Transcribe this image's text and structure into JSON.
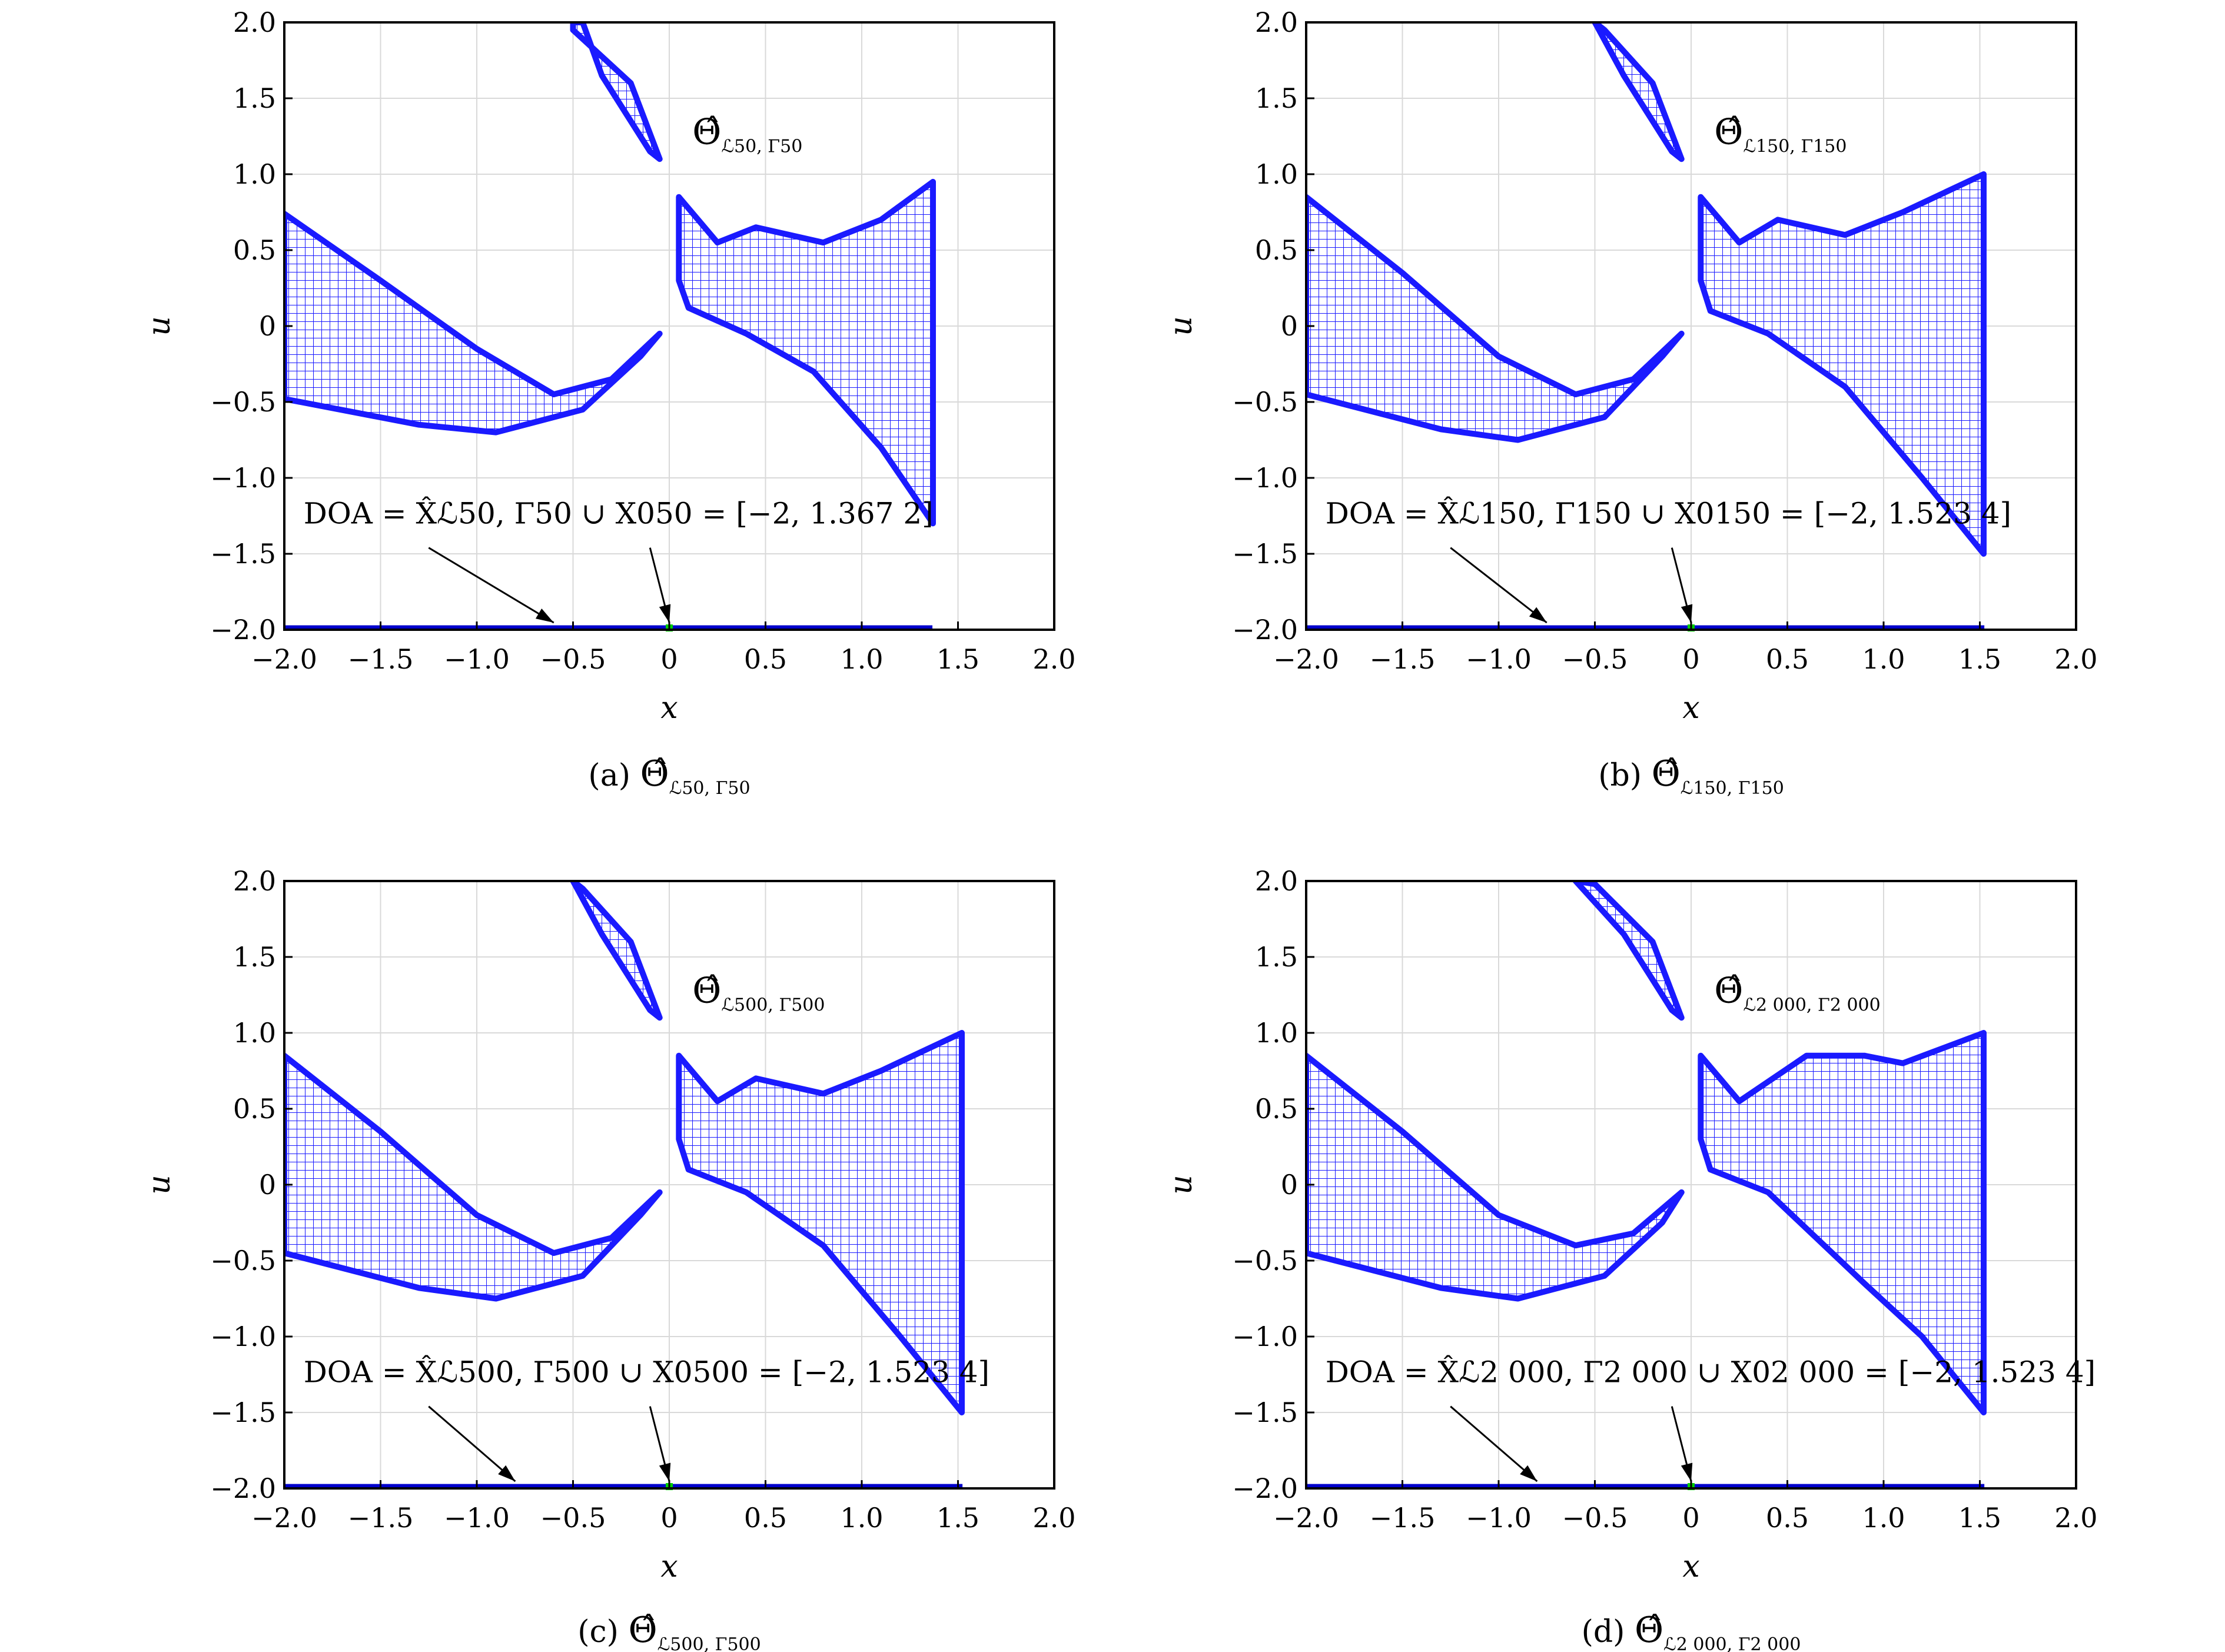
{
  "chart_data": [
    {
      "type": "area",
      "panel": "a",
      "caption_prefix": "(a)",
      "caption_symbol": "Θ̂",
      "caption_sub": "ℒ50, Γ50",
      "title_symbol": "Θ̂",
      "title_sub": "ℒ50, Γ50",
      "xlabel": "x",
      "ylabel": "u",
      "xlim": [
        -2.0,
        2.0
      ],
      "ylim": [
        -2.0,
        2.0
      ],
      "xticks": [
        "−2.0",
        "−1.5",
        "−1.0",
        "−0.5",
        "0",
        "0.5",
        "1.0",
        "1.5",
        "2.0"
      ],
      "yticks": [
        "−2.0",
        "−1.5",
        "−1.0",
        "−0.5",
        "0",
        "0.5",
        "1.0",
        "1.5",
        "2.0"
      ],
      "grid": true,
      "doa_text": "DOA = X̂ℒ50, Γ50 ∪ X050 = [−2, 1.367 2]",
      "doa_interval": [
        -2.0,
        1.3672
      ],
      "arrow_targets_x": [
        -0.6,
        0.0
      ],
      "region_color": "#1a1aff",
      "upper_lobe": {
        "x": [
          [
            -0.5,
            2.0
          ],
          [
            -0.5,
            1.95
          ],
          [
            -0.2,
            1.6
          ],
          [
            -0.05,
            1.1
          ],
          [
            -0.1,
            1.15
          ],
          [
            -0.35,
            1.65
          ],
          [
            -0.45,
            2.0
          ]
        ]
      },
      "left_lobe": {
        "x": [
          [
            -2.0,
            0.74
          ],
          [
            -1.5,
            0.3
          ],
          [
            -1.0,
            -0.15
          ],
          [
            -0.6,
            -0.45
          ],
          [
            -0.3,
            -0.35
          ],
          [
            -0.05,
            -0.05
          ],
          [
            -0.15,
            -0.2
          ],
          [
            -0.45,
            -0.55
          ],
          [
            -0.9,
            -0.7
          ],
          [
            -1.3,
            -0.65
          ],
          [
            -2.0,
            -0.48
          ]
        ]
      },
      "right_lobe": {
        "x": [
          [
            0.05,
            0.85
          ],
          [
            0.25,
            0.55
          ],
          [
            0.45,
            0.65
          ],
          [
            0.8,
            0.55
          ],
          [
            1.1,
            0.7
          ],
          [
            1.37,
            0.95
          ],
          [
            1.37,
            -1.3
          ],
          [
            1.1,
            -0.8
          ],
          [
            0.75,
            -0.3
          ],
          [
            0.4,
            -0.05
          ],
          [
            0.1,
            0.12
          ],
          [
            0.05,
            0.3
          ]
        ]
      }
    },
    {
      "type": "area",
      "panel": "b",
      "caption_prefix": "(b)",
      "caption_symbol": "Θ̂",
      "caption_sub": "ℒ150, Γ150",
      "title_symbol": "Θ̂",
      "title_sub": "ℒ150, Γ150",
      "xlabel": "x",
      "ylabel": "u",
      "xlim": [
        -2.0,
        2.0
      ],
      "ylim": [
        -2.0,
        2.0
      ],
      "xticks": [
        "−2.0",
        "−1.5",
        "−1.0",
        "−0.5",
        "0",
        "0.5",
        "1.0",
        "1.5",
        "2.0"
      ],
      "yticks": [
        "−2.0",
        "−1.5",
        "−1.0",
        "−0.5",
        "0",
        "0.5",
        "1.0",
        "1.5",
        "2.0"
      ],
      "grid": true,
      "doa_text": "DOA = X̂ℒ150, Γ150 ∪ X0150 = [−2, 1.523 4]",
      "doa_interval": [
        -2.0,
        1.5234
      ],
      "arrow_targets_x": [
        -0.75,
        0.0
      ],
      "region_color": "#1a1aff",
      "upper_lobe": {
        "x": [
          [
            -0.5,
            2.0
          ],
          [
            -0.45,
            1.95
          ],
          [
            -0.2,
            1.6
          ],
          [
            -0.05,
            1.1
          ],
          [
            -0.1,
            1.15
          ],
          [
            -0.35,
            1.65
          ],
          [
            -0.5,
            2.0
          ]
        ]
      },
      "left_lobe": {
        "x": [
          [
            -2.0,
            0.85
          ],
          [
            -1.5,
            0.35
          ],
          [
            -1.0,
            -0.2
          ],
          [
            -0.6,
            -0.45
          ],
          [
            -0.3,
            -0.35
          ],
          [
            -0.05,
            -0.05
          ],
          [
            -0.15,
            -0.2
          ],
          [
            -0.45,
            -0.6
          ],
          [
            -0.9,
            -0.75
          ],
          [
            -1.3,
            -0.68
          ],
          [
            -2.0,
            -0.45
          ]
        ]
      },
      "right_lobe": {
        "x": [
          [
            0.05,
            0.85
          ],
          [
            0.25,
            0.55
          ],
          [
            0.45,
            0.7
          ],
          [
            0.8,
            0.6
          ],
          [
            1.1,
            0.75
          ],
          [
            1.52,
            1.0
          ],
          [
            1.52,
            -1.5
          ],
          [
            1.2,
            -1.0
          ],
          [
            0.8,
            -0.4
          ],
          [
            0.4,
            -0.05
          ],
          [
            0.1,
            0.1
          ],
          [
            0.05,
            0.3
          ]
        ]
      }
    },
    {
      "type": "area",
      "panel": "c",
      "caption_prefix": "(c)",
      "caption_symbol": "Θ̂",
      "caption_sub": "ℒ500, Γ500",
      "title_symbol": "Θ̂",
      "title_sub": "ℒ500, Γ500",
      "xlabel": "x",
      "ylabel": "u",
      "xlim": [
        -2.0,
        2.0
      ],
      "ylim": [
        -2.0,
        2.0
      ],
      "xticks": [
        "−2.0",
        "−1.5",
        "−1.0",
        "−0.5",
        "0",
        "0.5",
        "1.0",
        "1.5",
        "2.0"
      ],
      "yticks": [
        "−2.0",
        "−1.5",
        "−1.0",
        "−0.5",
        "0",
        "0.5",
        "1.0",
        "1.5",
        "2.0"
      ],
      "grid": true,
      "doa_text": "DOA = X̂ℒ500, Γ500 ∪ X0500 = [−2, 1.523 4]",
      "doa_interval": [
        -2.0,
        1.5234
      ],
      "arrow_targets_x": [
        -0.8,
        0.0
      ],
      "region_color": "#1a1aff",
      "upper_lobe": {
        "x": [
          [
            -0.5,
            2.0
          ],
          [
            -0.45,
            1.95
          ],
          [
            -0.2,
            1.6
          ],
          [
            -0.05,
            1.1
          ],
          [
            -0.1,
            1.15
          ],
          [
            -0.35,
            1.65
          ],
          [
            -0.5,
            2.0
          ]
        ]
      },
      "left_lobe": {
        "x": [
          [
            -2.0,
            0.85
          ],
          [
            -1.5,
            0.35
          ],
          [
            -1.0,
            -0.2
          ],
          [
            -0.6,
            -0.45
          ],
          [
            -0.3,
            -0.35
          ],
          [
            -0.05,
            -0.05
          ],
          [
            -0.15,
            -0.2
          ],
          [
            -0.45,
            -0.6
          ],
          [
            -0.9,
            -0.75
          ],
          [
            -1.3,
            -0.68
          ],
          [
            -2.0,
            -0.45
          ]
        ]
      },
      "right_lobe": {
        "x": [
          [
            0.05,
            0.85
          ],
          [
            0.25,
            0.55
          ],
          [
            0.45,
            0.7
          ],
          [
            0.8,
            0.6
          ],
          [
            1.1,
            0.75
          ],
          [
            1.52,
            1.0
          ],
          [
            1.52,
            -1.5
          ],
          [
            1.2,
            -1.0
          ],
          [
            0.8,
            -0.4
          ],
          [
            0.4,
            -0.05
          ],
          [
            0.1,
            0.1
          ],
          [
            0.05,
            0.3
          ]
        ]
      }
    },
    {
      "type": "area",
      "panel": "d",
      "caption_prefix": "(d)",
      "caption_symbol": "Θ̂",
      "caption_sub": "ℒ2 000, Γ2 000",
      "title_symbol": "Θ̂",
      "title_sub": "ℒ2 000, Γ2 000",
      "xlabel": "x",
      "ylabel": "u",
      "xlim": [
        -2.0,
        2.0
      ],
      "ylim": [
        -2.0,
        2.0
      ],
      "xticks": [
        "−2.0",
        "−1.5",
        "−1.0",
        "−0.5",
        "0",
        "0.5",
        "1.0",
        "1.5",
        "2.0"
      ],
      "yticks": [
        "−2.0",
        "−1.5",
        "−1.0",
        "−0.5",
        "0",
        "0.5",
        "1.0",
        "1.5",
        "2.0"
      ],
      "grid": true,
      "doa_text": "DOA = X̂ℒ2 000, Γ2 000 ∪ X02 000 = [−2, 1.523 4]",
      "doa_interval": [
        -2.0,
        1.5234
      ],
      "arrow_targets_x": [
        -0.8,
        0.0
      ],
      "region_color": "#1a1aff",
      "upper_lobe": {
        "x": [
          [
            -0.6,
            2.0
          ],
          [
            -0.5,
            1.98
          ],
          [
            -0.2,
            1.6
          ],
          [
            -0.05,
            1.1
          ],
          [
            -0.1,
            1.15
          ],
          [
            -0.35,
            1.65
          ],
          [
            -0.6,
            2.0
          ]
        ]
      },
      "left_lobe": {
        "x": [
          [
            -2.0,
            0.85
          ],
          [
            -1.5,
            0.35
          ],
          [
            -1.0,
            -0.2
          ],
          [
            -0.6,
            -0.4
          ],
          [
            -0.3,
            -0.32
          ],
          [
            -0.05,
            -0.05
          ],
          [
            -0.15,
            -0.25
          ],
          [
            -0.45,
            -0.6
          ],
          [
            -0.9,
            -0.75
          ],
          [
            -1.3,
            -0.68
          ],
          [
            -2.0,
            -0.45
          ]
        ]
      },
      "right_lobe": {
        "x": [
          [
            0.05,
            0.85
          ],
          [
            0.25,
            0.55
          ],
          [
            0.6,
            0.85
          ],
          [
            0.9,
            0.85
          ],
          [
            1.1,
            0.8
          ],
          [
            1.52,
            1.0
          ],
          [
            1.52,
            -1.5
          ],
          [
            1.2,
            -1.0
          ],
          [
            0.9,
            -0.65
          ],
          [
            0.4,
            -0.05
          ],
          [
            0.1,
            0.1
          ],
          [
            0.05,
            0.3
          ]
        ]
      }
    }
  ],
  "colors": {
    "region": "#1a1aff",
    "region_fill": "#c9c9ff",
    "doa_line": "#0000cc",
    "origin_marker": "#00cc00"
  }
}
